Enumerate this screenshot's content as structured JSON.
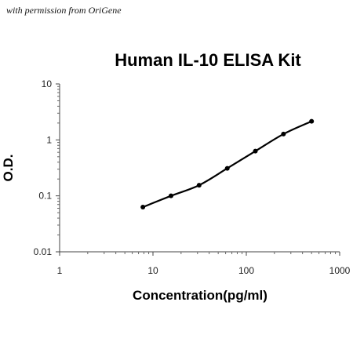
{
  "credit": "with permission from OriGene",
  "chart_data": {
    "type": "scatter",
    "title": "Human IL-10 ELISA Kit",
    "xlabel": "Concentration(pg/ml)",
    "ylabel": "O.D.",
    "xscale": "log",
    "yscale": "log",
    "xlim": [
      1,
      1000
    ],
    "ylim": [
      0.01,
      10
    ],
    "x_ticks": [
      "1",
      "10",
      "100",
      "1000"
    ],
    "y_ticks": [
      "0.01",
      "0.1",
      "1",
      "10"
    ],
    "grid": false,
    "legend": "none",
    "fit_curve": true,
    "series": [
      {
        "x": [
          7.8,
          15.6,
          31.2,
          62.5,
          125,
          250,
          500
        ],
        "y": [
          0.063,
          0.1,
          0.155,
          0.31,
          0.63,
          1.27,
          2.15
        ]
      }
    ]
  }
}
